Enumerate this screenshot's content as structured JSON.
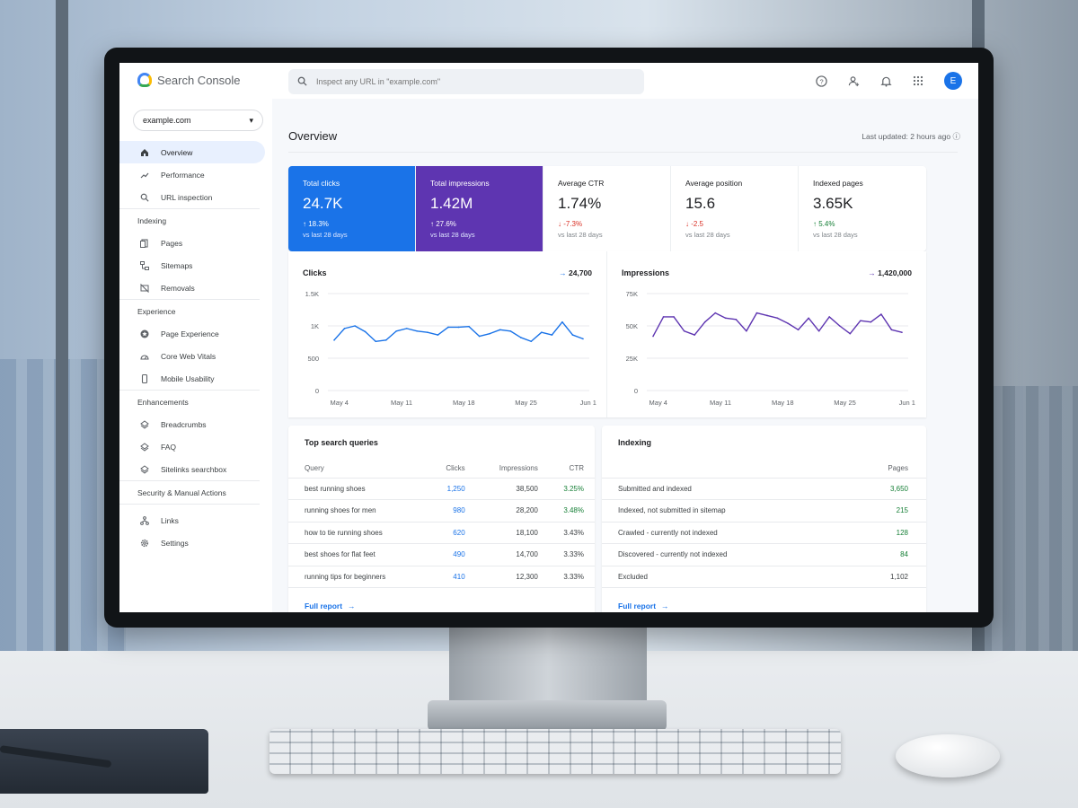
{
  "app": {
    "name": "Search Console"
  },
  "search": {
    "placeholder": "Inspect any URL in \"example.com\""
  },
  "topbar": {
    "avatar_letter": "E",
    "icons": [
      "help-icon",
      "manage-users-icon",
      "notifications-icon",
      "apps-grid-icon"
    ]
  },
  "property": {
    "selected": "example.com"
  },
  "sidebar": {
    "items": [
      {
        "label": "Overview",
        "icon": "home-icon",
        "active": true
      },
      {
        "label": "Performance",
        "icon": "trend-icon"
      },
      {
        "label": "URL inspection",
        "icon": "search-icon"
      }
    ],
    "sections": [
      {
        "title": "Indexing",
        "items": [
          {
            "label": "Pages",
            "icon": "pages-icon"
          },
          {
            "label": "Sitemaps",
            "icon": "sitemap-icon"
          },
          {
            "label": "Removals",
            "icon": "removal-icon"
          }
        ]
      },
      {
        "title": "Experience",
        "items": [
          {
            "label": "Page Experience",
            "icon": "star-circle-icon"
          },
          {
            "label": "Core Web Vitals",
            "icon": "gauge-icon"
          },
          {
            "label": "Mobile Usability",
            "icon": "phone-icon"
          }
        ]
      },
      {
        "title": "Enhancements",
        "items": [
          {
            "label": "Breadcrumbs",
            "icon": "layers-icon"
          },
          {
            "label": "FAQ",
            "icon": "layers-icon"
          },
          {
            "label": "Sitelinks searchbox",
            "icon": "layers-icon"
          }
        ]
      },
      {
        "title": "Security & Manual Actions",
        "items": []
      },
      {
        "title": "",
        "items": [
          {
            "label": "Links",
            "icon": "links-icon"
          },
          {
            "label": "Settings",
            "icon": "gear-icon"
          }
        ]
      }
    ]
  },
  "main": {
    "title": "Overview",
    "last_updated": "Last updated: 2 hours ago",
    "kpis": [
      {
        "label": "Total clicks",
        "value": "24.7K",
        "change": "↑ 18.3%",
        "sub": "vs last 28 days"
      },
      {
        "label": "Total impressions",
        "value": "1.42M",
        "change": "↑ 27.6%",
        "sub": "vs last 28 days"
      },
      {
        "label": "Average CTR",
        "value": "1.74%",
        "change": "↓ -7.3%",
        "sub": "vs last 28 days"
      },
      {
        "label": "Average position",
        "value": "15.6",
        "change": "↓ -2.5",
        "sub": "vs last 28 days"
      },
      {
        "label": "Indexed pages",
        "value": "3.65K",
        "change": "↑ 5.4%",
        "sub": "vs last 28 days"
      }
    ]
  },
  "chart_data": [
    {
      "type": "line",
      "title": "Clicks",
      "total": "24,700",
      "color": "#1a73e8",
      "yticks": [
        "1.5K",
        "1K",
        "500",
        "0"
      ],
      "ylim": [
        0,
        1500
      ],
      "xticks": [
        "May 4",
        "May 11",
        "May 18",
        "May 25",
        "Jun 1"
      ],
      "values": [
        780,
        960,
        1000,
        910,
        760,
        780,
        920,
        960,
        920,
        900,
        860,
        980,
        980,
        990,
        840,
        880,
        940,
        920,
        820,
        760,
        900,
        860,
        1060,
        860,
        800
      ]
    },
    {
      "type": "line",
      "title": "Impressions",
      "total": "1,420,000",
      "color": "#5e35b1",
      "yticks": [
        "75K",
        "50K",
        "25K",
        "0"
      ],
      "ylim": [
        0,
        75000
      ],
      "xticks": [
        "May 4",
        "May 11",
        "May 18",
        "May 25",
        "Jun 1"
      ],
      "values": [
        42000,
        57000,
        57000,
        46000,
        43000,
        53000,
        60000,
        56000,
        55000,
        46000,
        60000,
        58000,
        56000,
        52000,
        47000,
        56000,
        46000,
        57000,
        50000,
        44000,
        54000,
        53000,
        59000,
        47000,
        45000
      ]
    }
  ],
  "queries": {
    "title": "Top search queries",
    "headers": [
      "Query",
      "Clicks",
      "Impressions",
      "CTR"
    ],
    "rows": [
      [
        "best running shoes",
        "1,250",
        "38,500",
        "3.25%"
      ],
      [
        "running shoes for men",
        "980",
        "28,200",
        "3.48%"
      ],
      [
        "how to tie running shoes",
        "620",
        "18,100",
        "3.43%"
      ],
      [
        "best shoes for flat feet",
        "490",
        "14,700",
        "3.33%"
      ],
      [
        "running tips for beginners",
        "410",
        "12,300",
        "3.33%"
      ]
    ],
    "link": "Full report"
  },
  "indexing": {
    "title": "Indexing",
    "headers": [
      "",
      "Pages"
    ],
    "rows": [
      [
        "Submitted and indexed",
        "3,650"
      ],
      [
        "Indexed, not submitted in sitemap",
        "215"
      ],
      [
        "Crawled - currently not indexed",
        "128"
      ],
      [
        "Discovered - currently not indexed",
        "84"
      ],
      [
        "Excluded",
        "1,102"
      ]
    ],
    "link": "Full report"
  }
}
